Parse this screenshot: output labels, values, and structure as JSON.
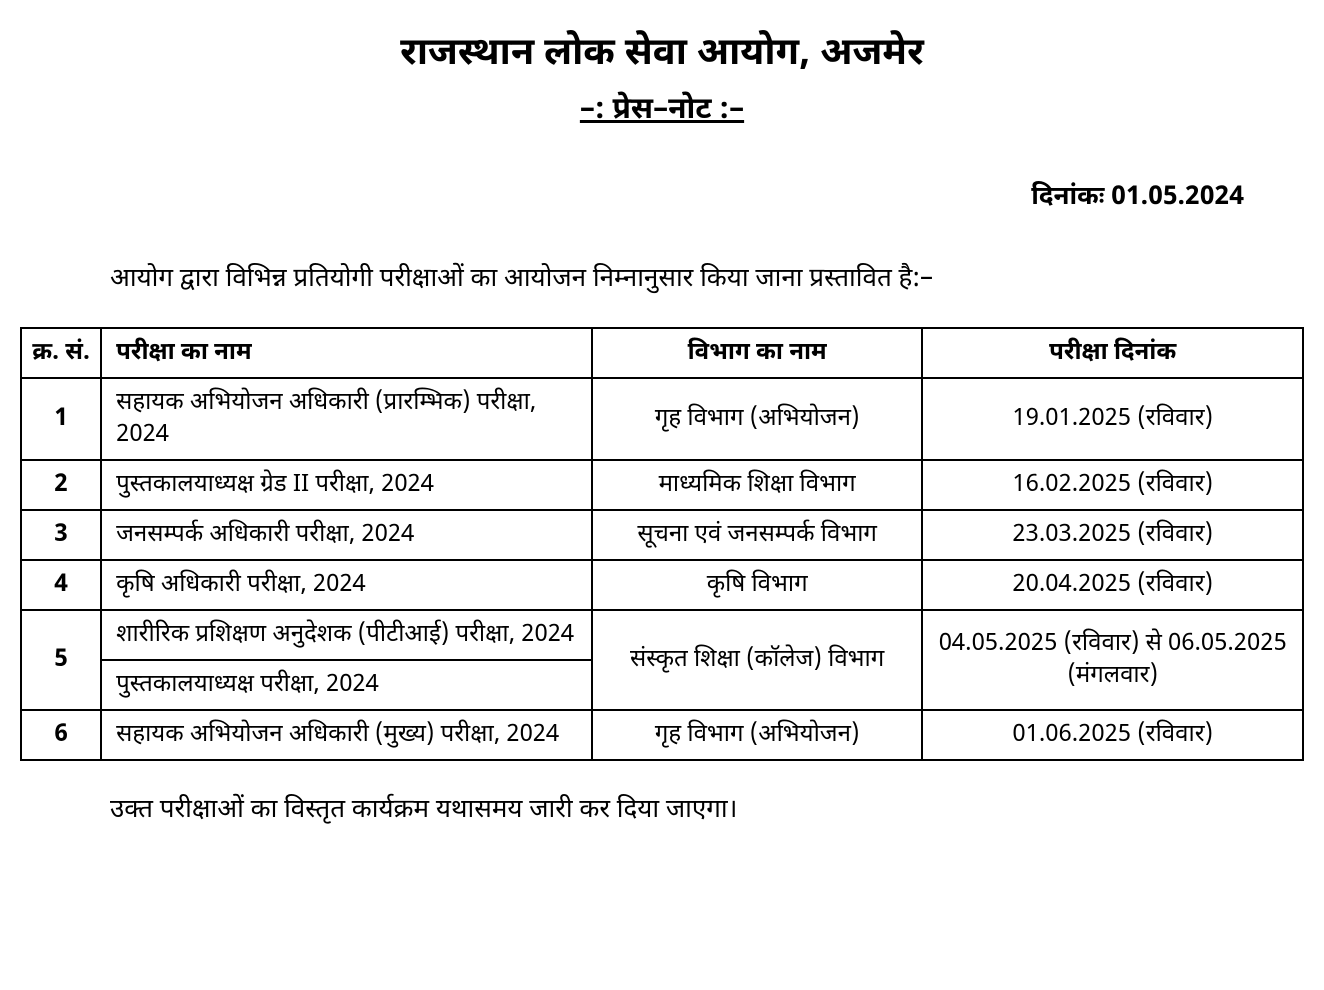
{
  "document": {
    "title": "राजस्थान लोक सेवा आयोग, अजमेर",
    "subtitle": "–: प्रेस–नोट :–",
    "date_label": "दिनांकः",
    "date_value": "01.05.2024",
    "intro": "आयोग द्वारा विभिन्न प्रतियोगी परीक्षाओं का आयोजन निम्नानुसार किया जाना प्रस्तावित है:–",
    "footer_note": "उक्त परीक्षाओं का विस्तृत कार्यक्रम यथासमय जारी कर दिया जाएगा।"
  },
  "table": {
    "headers": {
      "sn": "क्र. सं.",
      "exam": "परीक्षा का नाम",
      "dept": "विभाग का नाम",
      "date": "परीक्षा दिनांक"
    },
    "rows": {
      "r1": {
        "sn": "1",
        "exam": "सहायक अभियोजन अधिकारी (प्रारम्भिक) परीक्षा, 2024",
        "dept": "गृह विभाग (अभियोजन)",
        "date": "19.01.2025 (रविवार)"
      },
      "r2": {
        "sn": "2",
        "exam": "पुस्तकालयाध्यक्ष ग्रेड II परीक्षा, 2024",
        "dept": "माध्यमिक शिक्षा विभाग",
        "date": "16.02.2025 (रविवार)"
      },
      "r3": {
        "sn": "3",
        "exam": "जनसम्पर्क अधिकारी परीक्षा, 2024",
        "dept": "सूचना एवं जनसम्पर्क विभाग",
        "date": "23.03.2025 (रविवार)"
      },
      "r4": {
        "sn": "4",
        "exam": "कृषि अधिकारी परीक्षा, 2024",
        "dept": "कृषि विभाग",
        "date": "20.04.2025 (रविवार)"
      },
      "r5": {
        "sn": "5",
        "exam_a": "शारीरिक प्रशिक्षण अनुदेशक (पीटीआई) परीक्षा, 2024",
        "exam_b": "पुस्तकालयाध्यक्ष परीक्षा, 2024",
        "dept": "संस्कृत शिक्षा (कॉलेज) विभाग",
        "date": "04.05.2025 (रविवार) से 06.05.2025 (मंगलवार)"
      },
      "r6": {
        "sn": "6",
        "exam": "सहायक अभियोजन अधिकारी (मुख्य) परीक्षा, 2024",
        "dept": "गृह विभाग (अभियोजन)",
        "date": "01.06.2025 (रविवार)"
      }
    }
  },
  "styling": {
    "background_color": "#ffffff",
    "text_color": "#000000",
    "border_color": "#000000",
    "title_fontsize": 38,
    "subtitle_fontsize": 30,
    "body_fontsize": 26,
    "table_fontsize": 24,
    "border_width": 2,
    "col_widths": {
      "sn": 80,
      "exam": 490,
      "dept": 330,
      "date": 380
    }
  }
}
